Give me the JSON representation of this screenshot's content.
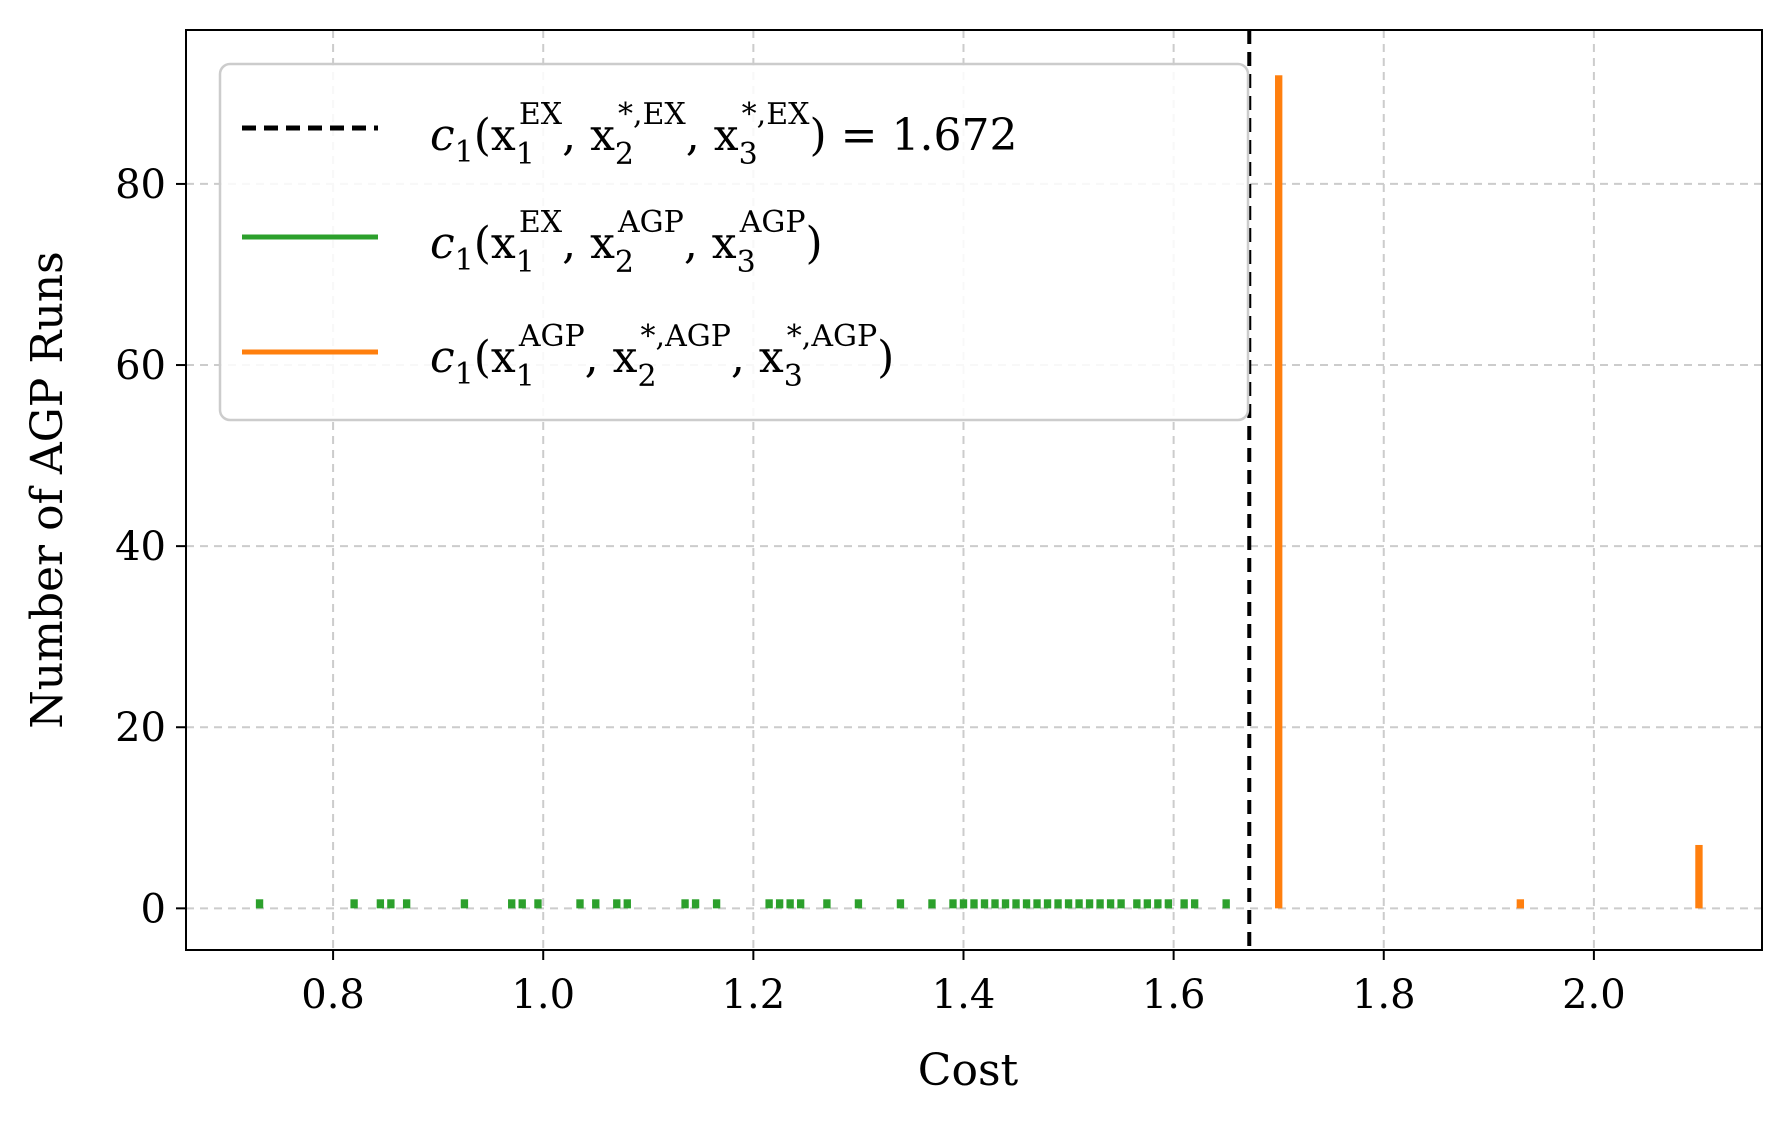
{
  "chart_data": {
    "type": "bar",
    "xlabel": "Cost",
    "ylabel": "Number of AGP Runs",
    "xlim": [
      0.66,
      2.16
    ],
    "ylim": [
      -4.6,
      97
    ],
    "xticks": [
      0.8,
      1.0,
      1.2,
      1.4,
      1.6,
      1.8,
      2.0
    ],
    "xtick_labels": [
      "0.8",
      "1.0",
      "1.2",
      "1.4",
      "1.6",
      "1.8",
      "2.0"
    ],
    "yticks": [
      0,
      20,
      40,
      60,
      80
    ],
    "ytick_labels": [
      "0",
      "20",
      "40",
      "60",
      "80"
    ],
    "grid": true,
    "legend_position": "top-left",
    "reference_line": {
      "x": 1.672,
      "label_parts": [
        "c",
        "1",
        "(x",
        "1",
        "EX",
        ", x",
        "2",
        "*,EX",
        ", x",
        "3",
        "*,EX",
        ") = 1.672"
      ],
      "color": "#000000"
    },
    "series": [
      {
        "name": "c1(x1^EX, x2^AGP, x3^AGP)",
        "label_parts": [
          "c",
          "1",
          "(x",
          "1",
          "EX",
          ", x",
          "2",
          "AGP",
          ", x",
          "3",
          "AGP",
          ")"
        ],
        "color": "#2ca02c",
        "bar_width": 0.007,
        "x": [
          0.73,
          0.82,
          0.845,
          0.855,
          0.87,
          0.925,
          0.97,
          0.98,
          0.995,
          1.035,
          1.05,
          1.07,
          1.08,
          1.135,
          1.145,
          1.165,
          1.215,
          1.225,
          1.235,
          1.245,
          1.27,
          1.3,
          1.34,
          1.37,
          1.39,
          1.4,
          1.41,
          1.42,
          1.43,
          1.44,
          1.45,
          1.46,
          1.47,
          1.48,
          1.49,
          1.5,
          1.51,
          1.52,
          1.53,
          1.54,
          1.55,
          1.565,
          1.575,
          1.585,
          1.595,
          1.61,
          1.62,
          1.65
        ],
        "values": [
          1,
          1,
          1,
          1,
          1,
          1,
          1,
          1,
          1,
          1,
          1,
          1,
          1,
          1,
          1,
          1,
          1,
          1,
          1,
          1,
          1,
          1,
          1,
          1,
          1,
          1,
          1,
          1,
          1,
          1,
          1,
          1,
          1,
          1,
          1,
          1,
          1,
          1,
          1,
          1,
          1,
          1,
          1,
          1,
          1,
          1,
          1,
          1
        ]
      },
      {
        "name": "c1(x1^AGP, x2^*,AGP, x3^*,AGP)",
        "label_parts": [
          "c",
          "1",
          "(x",
          "1",
          "AGP",
          ", x",
          "2",
          "*,AGP",
          ", x",
          "3",
          "*,AGP",
          ")"
        ],
        "color": "#ff7f0e",
        "bar_width": 0.007,
        "x": [
          1.7,
          1.93,
          2.1
        ],
        "values": [
          92,
          1,
          7
        ]
      }
    ]
  }
}
